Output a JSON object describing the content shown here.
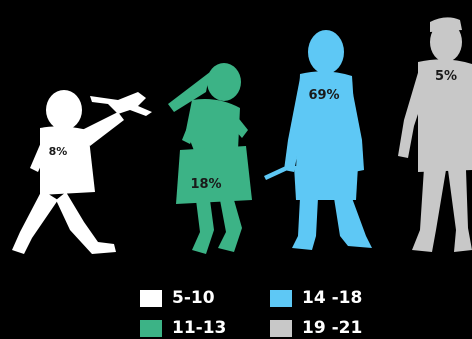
{
  "chart_data": {
    "type": "pictograph",
    "series": [
      {
        "name": "5-10",
        "value": 8,
        "label": "8%",
        "color": "#ffffff",
        "icon": "child-with-airplane-icon"
      },
      {
        "name": "11-13",
        "value": 18,
        "label": "18%",
        "color": "#3cb386",
        "icon": "girl-jumping-icon"
      },
      {
        "name": "14 -18",
        "value": 69,
        "label": "69%",
        "color": "#5ec8f5",
        "icon": "boy-standing-icon"
      },
      {
        "name": "19 -21",
        "value": 5,
        "label": "5%",
        "color": "#c8c8c8",
        "icon": "young-adult-with-cap-icon"
      }
    ],
    "legend_position": "bottom"
  }
}
